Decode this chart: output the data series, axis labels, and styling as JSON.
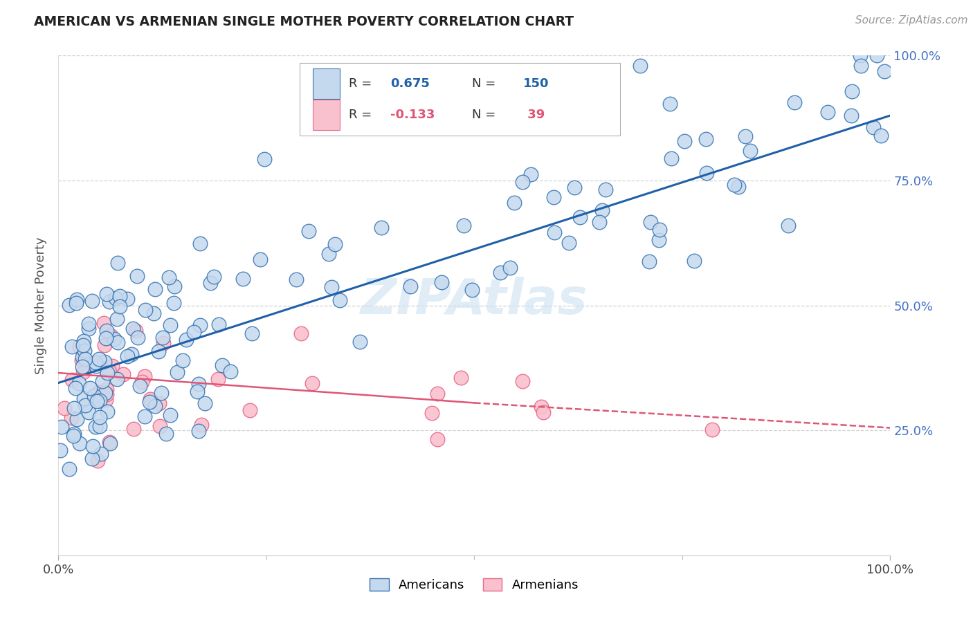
{
  "title": "AMERICAN VS ARMENIAN SINGLE MOTHER POVERTY CORRELATION CHART",
  "source_text": "Source: ZipAtlas.com",
  "ylabel": "Single Mother Poverty",
  "xlim": [
    0.0,
    1.0
  ],
  "ylim": [
    0.0,
    1.0
  ],
  "blue_R": 0.675,
  "blue_N": 150,
  "pink_R": -0.133,
  "pink_N": 39,
  "blue_face_color": "#c5d9ee",
  "blue_edge_color": "#3573b1",
  "pink_face_color": "#f9c0ce",
  "pink_edge_color": "#e8698a",
  "blue_line_color": "#2060a8",
  "pink_line_color": "#e05575",
  "blue_trend": [
    0.0,
    1.0,
    0.345,
    0.88
  ],
  "pink_solid": [
    0.0,
    0.5,
    0.365,
    0.305
  ],
  "pink_dashed": [
    0.5,
    1.0,
    0.305,
    0.255
  ],
  "watermark": "ZIPAtlas",
  "grid_color": "#d0d0d0",
  "right_tick_color": "#4472c4"
}
